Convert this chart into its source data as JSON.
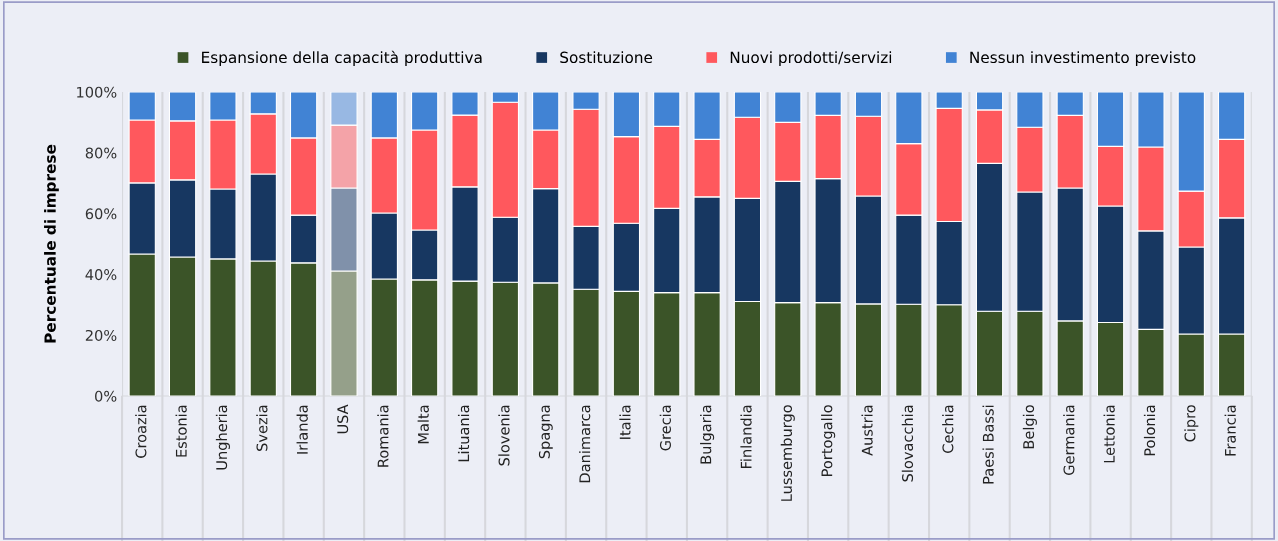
{
  "chart_data": {
    "type": "bar",
    "stacked": true,
    "ylabel": "Percentuale di imprese",
    "categories": [
      "Croazia",
      "Estonia",
      "Ungheria",
      "Svezia",
      "Irlanda",
      "USA",
      "Romania",
      "Malta",
      "Lituania",
      "Slovenia",
      "Spagna",
      "Danimarca",
      "Italia",
      "Grecia",
      "Bulgaria",
      "Finlandia",
      "Lussemburgo",
      "Portogallo",
      "Austria",
      "Slovacchia",
      "Cechia",
      "Paesi Bassi",
      "Belgio",
      "Germania",
      "Lettonia",
      "Polonia",
      "Cipro",
      "Francia"
    ],
    "series": [
      {
        "name": "Espansione della capacità produttiva",
        "color": "#3b5428",
        "colors": [
          "#3b5428",
          "#3b5428",
          "#3b5428",
          "#3b5428",
          "#3b5428",
          "#95a08a",
          "#3b5428",
          "#3b5428",
          "#3b5428",
          "#3b5428",
          "#3b5428",
          "#3b5428",
          "#3b5428",
          "#3b5428",
          "#3b5428",
          "#3b5428",
          "#3b5428",
          "#3b5428",
          "#3b5428",
          "#3b5428",
          "#3b5428",
          "#3b5428",
          "#3b5428",
          "#3b5428",
          "#3b5428",
          "#3b5428",
          "#3b5428",
          "#3b5428"
        ],
        "values": [
          46.7,
          45.7,
          45.1,
          44.4,
          43.8,
          41.1,
          38.5,
          38.2,
          37.8,
          37.4,
          37.2,
          35.1,
          34.4,
          34.0,
          34.0,
          31.1,
          30.7,
          30.7,
          30.3,
          30.2,
          30.0,
          27.9,
          27.9,
          24.7,
          24.2,
          21.9,
          20.4,
          20.4
        ]
      },
      {
        "name": "Sostituzione",
        "color": "#173761",
        "colors": [
          "#173761",
          "#173761",
          "#173761",
          "#173761",
          "#173761",
          "#8091aa",
          "#173761",
          "#173761",
          "#173761",
          "#173761",
          "#173761",
          "#173761",
          "#173761",
          "#173761",
          "#173761",
          "#173761",
          "#173761",
          "#173761",
          "#173761",
          "#173761",
          "#173761",
          "#173761",
          "#173761",
          "#173761",
          "#173761",
          "#173761",
          "#173761",
          "#173761"
        ],
        "values": [
          23.4,
          25.4,
          23.0,
          28.6,
          15.7,
          27.3,
          21.7,
          16.4,
          31.0,
          21.4,
          31.0,
          20.7,
          22.4,
          27.7,
          31.5,
          33.9,
          39.9,
          40.8,
          35.5,
          29.3,
          27.4,
          48.6,
          39.2,
          43.7,
          38.3,
          32.4,
          28.6,
          38.2
        ]
      },
      {
        "name": "Nuovi prodotti/servizi",
        "color": "#ff585d",
        "colors": [
          "#ff585d",
          "#ff585d",
          "#ff585d",
          "#ff585d",
          "#ff585d",
          "#f4a3a8",
          "#ff585d",
          "#ff585d",
          "#ff585d",
          "#ff585d",
          "#ff585d",
          "#ff585d",
          "#ff585d",
          "#ff585d",
          "#ff585d",
          "#ff585d",
          "#ff585d",
          "#ff585d",
          "#ff585d",
          "#ff585d",
          "#ff585d",
          "#ff585d",
          "#ff585d",
          "#ff585d",
          "#ff585d",
          "#ff585d",
          "#ff585d",
          "#ff585d"
        ],
        "values": [
          20.7,
          19.4,
          22.7,
          19.8,
          25.4,
          20.7,
          24.7,
          32.9,
          23.6,
          37.8,
          19.3,
          38.5,
          28.5,
          27.0,
          18.9,
          26.7,
          19.4,
          20.8,
          26.2,
          23.5,
          37.2,
          17.6,
          21.3,
          23.9,
          19.6,
          27.6,
          18.4,
          25.8
        ]
      },
      {
        "name": "Nessun investimento previsto",
        "color": "#4183d4",
        "colors": [
          "#4183d4",
          "#4183d4",
          "#4183d4",
          "#4183d4",
          "#4183d4",
          "#98b8e3",
          "#4183d4",
          "#4183d4",
          "#4183d4",
          "#4183d4",
          "#4183d4",
          "#4183d4",
          "#4183d4",
          "#4183d4",
          "#4183d4",
          "#4183d4",
          "#4183d4",
          "#4183d4",
          "#4183d4",
          "#4183d4",
          "#4183d4",
          "#4183d4",
          "#4183d4",
          "#4183d4",
          "#4183d4",
          "#4183d4",
          "#4183d4",
          "#4183d4"
        ],
        "values": [
          9.2,
          9.5,
          9.2,
          7.2,
          15.1,
          10.9,
          15.1,
          12.5,
          7.6,
          3.4,
          12.5,
          5.7,
          14.7,
          11.3,
          15.6,
          8.3,
          10.0,
          7.7,
          8.0,
          17.0,
          5.4,
          5.9,
          11.6,
          7.7,
          17.9,
          18.1,
          32.6,
          15.6
        ]
      }
    ],
    "ylim": [
      0,
      100
    ],
    "yticks": [
      {
        "value": 0,
        "label": "0%"
      },
      {
        "value": 20,
        "label": "20%"
      },
      {
        "value": 40,
        "label": "40%"
      },
      {
        "value": 60,
        "label": "60%"
      },
      {
        "value": 80,
        "label": "80%"
      },
      {
        "value": 100,
        "label": "100%"
      }
    ],
    "grid": "x",
    "legend": "top"
  }
}
